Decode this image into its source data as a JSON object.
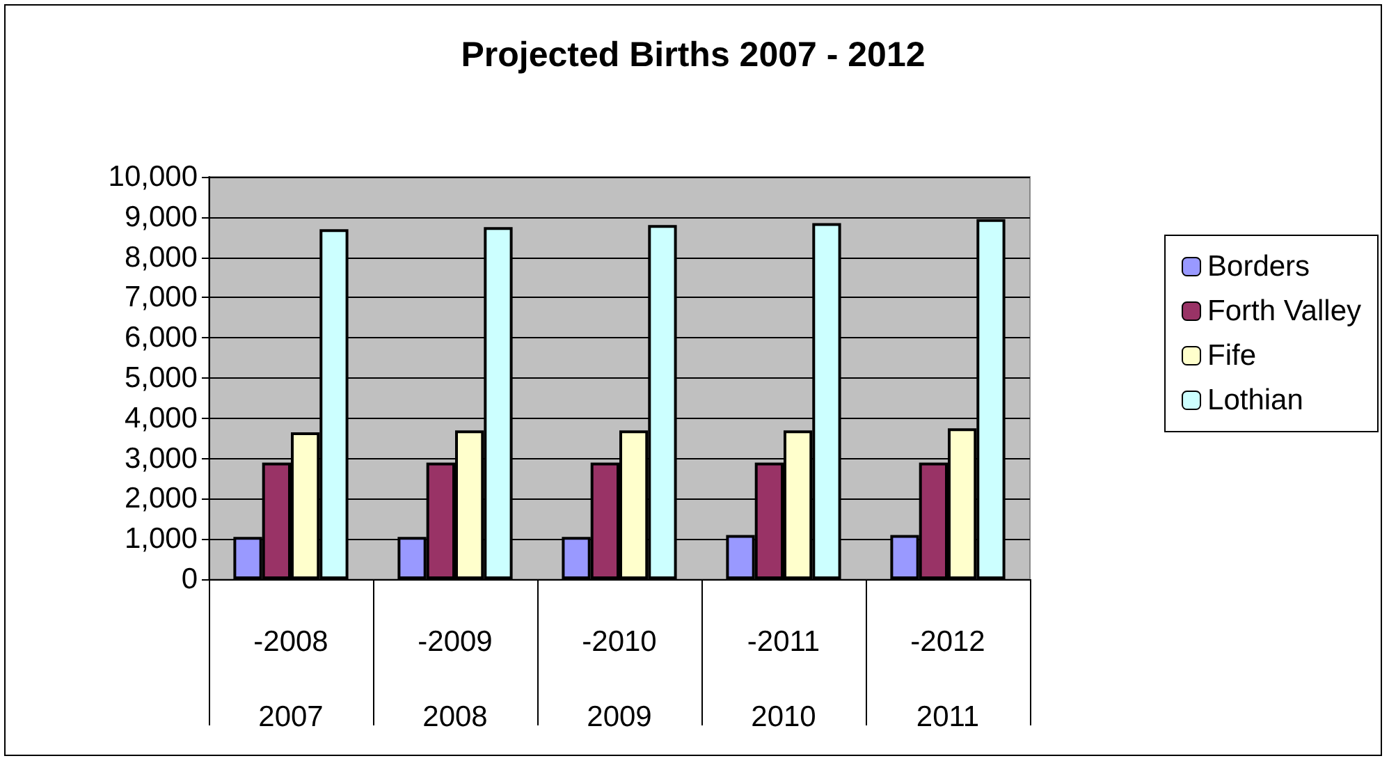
{
  "chart_data": {
    "type": "bar",
    "title": "Projected Births 2007 - 2012",
    "categories": [
      "-2008\n2007",
      "-2009\n2008",
      "-2010\n2009",
      "-2011\n2010",
      "-2012\n2011"
    ],
    "series": [
      {
        "name": "Borders",
        "color": "#9999ff",
        "values": [
          1050,
          1050,
          1050,
          1100,
          1100
        ]
      },
      {
        "name": "Forth Valley",
        "color": "#993366",
        "values": [
          2900,
          2900,
          2900,
          2900,
          2900
        ]
      },
      {
        "name": "Fife",
        "color": "#ffffcc",
        "values": [
          3650,
          3700,
          3700,
          3700,
          3750
        ]
      },
      {
        "name": "Lothian",
        "color": "#ccffff",
        "values": [
          8700,
          8750,
          8800,
          8850,
          8950
        ]
      }
    ],
    "ylim": [
      0,
      10000
    ],
    "yticks": [
      0,
      {
        "value": 1000,
        "label": "1,000"
      },
      {
        "value": 2000,
        "label": "2,000"
      },
      {
        "value": 3000,
        "label": "3,000"
      },
      {
        "value": 4000,
        "label": "4,000"
      },
      {
        "value": 5000,
        "label": "5,000"
      },
      {
        "value": 6000,
        "label": "6,000"
      },
      {
        "value": 7000,
        "label": "7,000"
      },
      {
        "value": 8000,
        "label": "8,000"
      },
      {
        "value": 9000,
        "label": "9,000"
      },
      {
        "value": 10000,
        "label": "10,000"
      }
    ],
    "grid": "y",
    "legend": "right"
  }
}
